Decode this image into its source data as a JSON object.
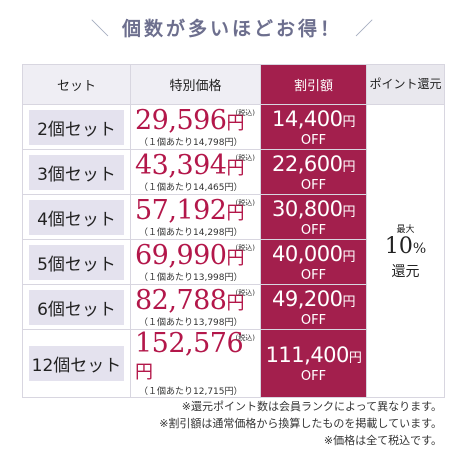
{
  "title": "個数が多いほどお得！",
  "headers": {
    "set": "セット",
    "price": "特別価格",
    "discount": "割引額",
    "points": "ポイント還元"
  },
  "rows": [
    {
      "set": "2個セット",
      "price": "29,596",
      "yen": "円",
      "tax": "(税込)",
      "per": "（１個あたり14,798円）",
      "discount": "14,400",
      "off": "OFF"
    },
    {
      "set": "3個セット",
      "price": "43,394",
      "yen": "円",
      "tax": "(税込)",
      "per": "（１個あたり14,465円）",
      "discount": "22,600",
      "off": "OFF"
    },
    {
      "set": "4個セット",
      "price": "57,192",
      "yen": "円",
      "tax": "(税込)",
      "per": "（１個あたり14,298円）",
      "discount": "30,800",
      "off": "OFF"
    },
    {
      "set": "5個セット",
      "price": "69,990",
      "yen": "円",
      "tax": "(税込)",
      "per": "（１個あたり13,998円）",
      "discount": "40,000",
      "off": "OFF"
    },
    {
      "set": "6個セット",
      "price": "82,788",
      "yen": "円",
      "tax": "(税込)",
      "per": "（１個あたり13,798円）",
      "discount": "49,200",
      "off": "OFF"
    },
    {
      "set": "12個セット",
      "price": "152,576",
      "yen": "円",
      "tax": "(税込)",
      "per": "（１個あたり12,715円）",
      "discount": "111,400",
      "off": "OFF"
    }
  ],
  "discount_unit": "円",
  "points": {
    "max": "最大",
    "value": "10",
    "pct": "%",
    "label": "還元"
  },
  "notes": [
    "※還元ポイント数は会員ランクによって異なります。",
    "※割引額は通常価格から換算したものを掲載しています。",
    "※価格は全て税込です。"
  ],
  "colors": {
    "accent": "#a31f4d",
    "price": "#b3174a",
    "title": "#6d6f8e",
    "pill": "#e4e2ee"
  }
}
